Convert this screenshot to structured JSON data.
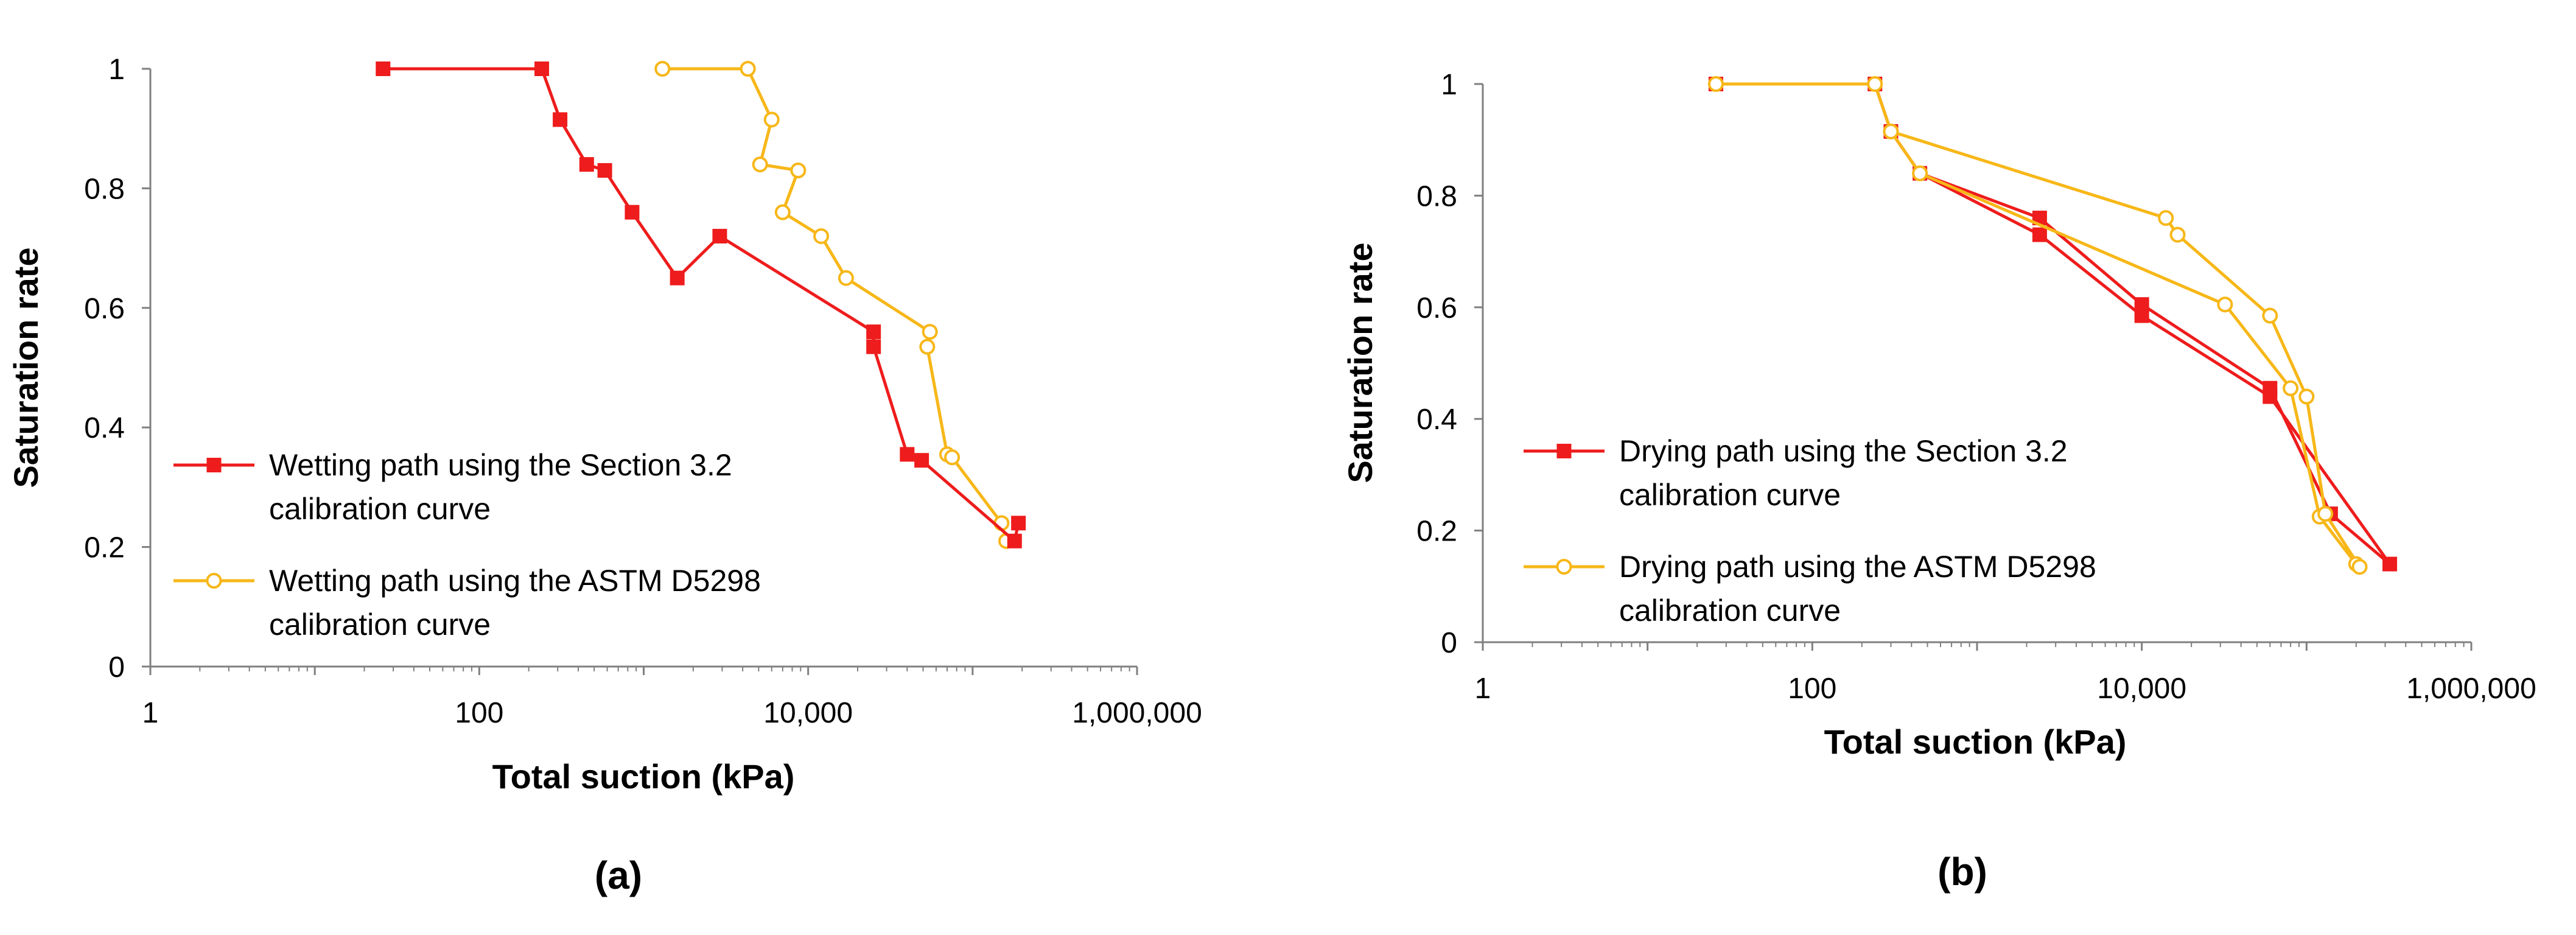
{
  "colors": {
    "red": "#ee1c1c",
    "gold": "#f7b718",
    "axis": "#7f7f7f"
  },
  "chart_data": [
    {
      "type": "scatter",
      "panel_label": "(a)",
      "xlabel": "Total suction (kPa)",
      "ylabel": "Saturation rate",
      "xscale": "log",
      "xlim": [
        1,
        1000000
      ],
      "ylim": [
        0,
        1
      ],
      "x_ticks": [
        1,
        10,
        100,
        1000,
        10000,
        100000,
        1000000
      ],
      "x_tick_labels": [
        "1",
        "",
        "100",
        "",
        "10,000",
        "",
        "1,000,000"
      ],
      "y_ticks": [
        0,
        0.2,
        0.4,
        0.6,
        0.8,
        1
      ],
      "y_tick_labels": [
        "0",
        "0.2",
        "0.4",
        "0.6",
        "0.8",
        "1"
      ],
      "grid": false,
      "legend_position": "lower-left",
      "series": [
        {
          "name": "Wetting path using the Section 3.2 calibration curve",
          "legend_lines": [
            "Wetting path using the Section 3.2",
            "calibration curve"
          ],
          "color": "#ee1c1c",
          "marker": "filled-square",
          "x": [
            26,
            240,
            310,
            450,
            580,
            850,
            1600,
            2900,
            25000,
            25000,
            40000,
            49000,
            180000,
            190000
          ],
          "y": [
            1.0,
            1.0,
            0.915,
            0.84,
            0.83,
            0.76,
            0.65,
            0.72,
            0.56,
            0.535,
            0.355,
            0.345,
            0.21,
            0.24
          ]
        },
        {
          "name": "Wetting path using the ASTM D5298 calibration curve",
          "legend_lines": [
            "Wetting path using the ASTM D5298",
            "calibration curve"
          ],
          "color": "#f7b718",
          "marker": "open-circle",
          "x": [
            1300,
            4300,
            6000,
            5100,
            8700,
            7000,
            12000,
            17000,
            55000,
            53000,
            70000,
            75000,
            150000,
            160000
          ],
          "y": [
            1.0,
            1.0,
            0.915,
            0.84,
            0.83,
            0.76,
            0.72,
            0.65,
            0.56,
            0.535,
            0.355,
            0.35,
            0.24,
            0.21
          ]
        }
      ]
    },
    {
      "type": "scatter",
      "panel_label": "(b)",
      "xlabel": "Total suction (kPa)",
      "ylabel": "Saturation rate",
      "xscale": "log",
      "xlim": [
        1,
        1000000
      ],
      "ylim": [
        0,
        1
      ],
      "x_ticks": [
        1,
        10,
        100,
        1000,
        10000,
        100000,
        1000000
      ],
      "x_tick_labels": [
        "1",
        "",
        "100",
        "",
        "10,000",
        "",
        "1,000,000"
      ],
      "y_ticks": [
        0,
        0.2,
        0.4,
        0.6,
        0.8,
        1
      ],
      "y_tick_labels": [
        "0",
        "0.2",
        "0.4",
        "0.6",
        "0.8",
        "1"
      ],
      "grid": false,
      "legend_position": "lower-left",
      "series": [
        {
          "name": "Drying path using the Section 3.2 calibration curve",
          "legend_lines": [
            "Drying path using the Section 3.2",
            "calibration curve"
          ],
          "color": "#ee1c1c",
          "marker": "filled-square",
          "x": [
            26,
            240,
            300,
            450,
            2400,
            2400,
            10000,
            10000,
            60000,
            60000,
            140000,
            320000
          ],
          "y": [
            1.0,
            1.0,
            0.915,
            0.84,
            0.76,
            0.73,
            0.605,
            0.585,
            0.455,
            0.44,
            0.23,
            0.14
          ],
          "order": [
            0,
            1,
            2,
            3,
            5,
            7,
            9,
            11,
            10,
            8,
            6,
            4,
            3
          ]
        },
        {
          "name": "Drying path using the ASTM D5298 calibration curve",
          "legend_lines": [
            "Drying path using the ASTM D5298",
            "calibration curve"
          ],
          "color": "#f7b718",
          "marker": "open-circle",
          "x": [
            26,
            240,
            300,
            450,
            14000,
            16500,
            32000,
            60000,
            80000,
            100000,
            120000,
            130000,
            200000,
            210000
          ],
          "y": [
            1.0,
            1.0,
            0.915,
            0.84,
            0.76,
            0.73,
            0.605,
            0.585,
            0.455,
            0.44,
            0.225,
            0.23,
            0.14,
            0.135
          ],
          "order": [
            0,
            1,
            2,
            4,
            5,
            7,
            9,
            11,
            13,
            12,
            10,
            8,
            6,
            3,
            2
          ]
        }
      ]
    }
  ]
}
